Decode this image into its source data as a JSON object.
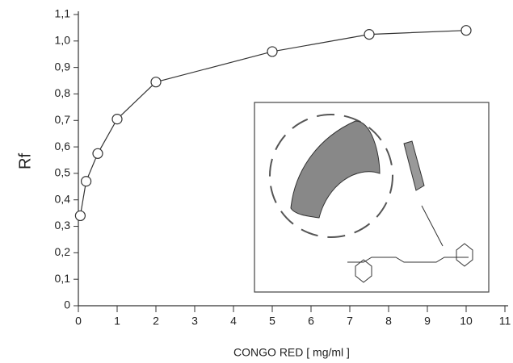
{
  "chart_data": {
    "type": "line",
    "x_label": "CONGO RED  [ mg/ml ]",
    "y_label": "Rf",
    "x": [
      0.05,
      0.2,
      0.5,
      1,
      2,
      5,
      7.5,
      10
    ],
    "series": [
      {
        "color": "#333333",
        "values": [
          0.34,
          0.47,
          0.575,
          0.705,
          0.845,
          0.96,
          1.025,
          1.04
        ]
      }
    ],
    "xlim": [
      0,
      11
    ],
    "xticks": [
      0,
      1,
      2,
      3,
      4,
      5,
      6,
      7,
      8,
      9,
      10,
      11
    ],
    "ylim": [
      0,
      1.1
    ],
    "yticks": [
      0,
      {
        "value": 0.1,
        "label": "0,1"
      },
      {
        "value": 0.2,
        "label": "0,2"
      },
      {
        "value": 0.3,
        "label": "0,3"
      },
      {
        "value": 0.4,
        "label": "0,4"
      },
      {
        "value": 0.5,
        "label": "0,5"
      },
      {
        "value": 0.6,
        "label": "0,6"
      },
      {
        "value": 0.7,
        "label": "0,7"
      },
      {
        "value": 0.8,
        "label": "0,8"
      },
      {
        "value": 0.9,
        "label": "0,9"
      },
      {
        "value": 1.0,
        "label": "1,0"
      },
      {
        "value": 1.1,
        "label": "1,1"
      }
    ]
  }
}
